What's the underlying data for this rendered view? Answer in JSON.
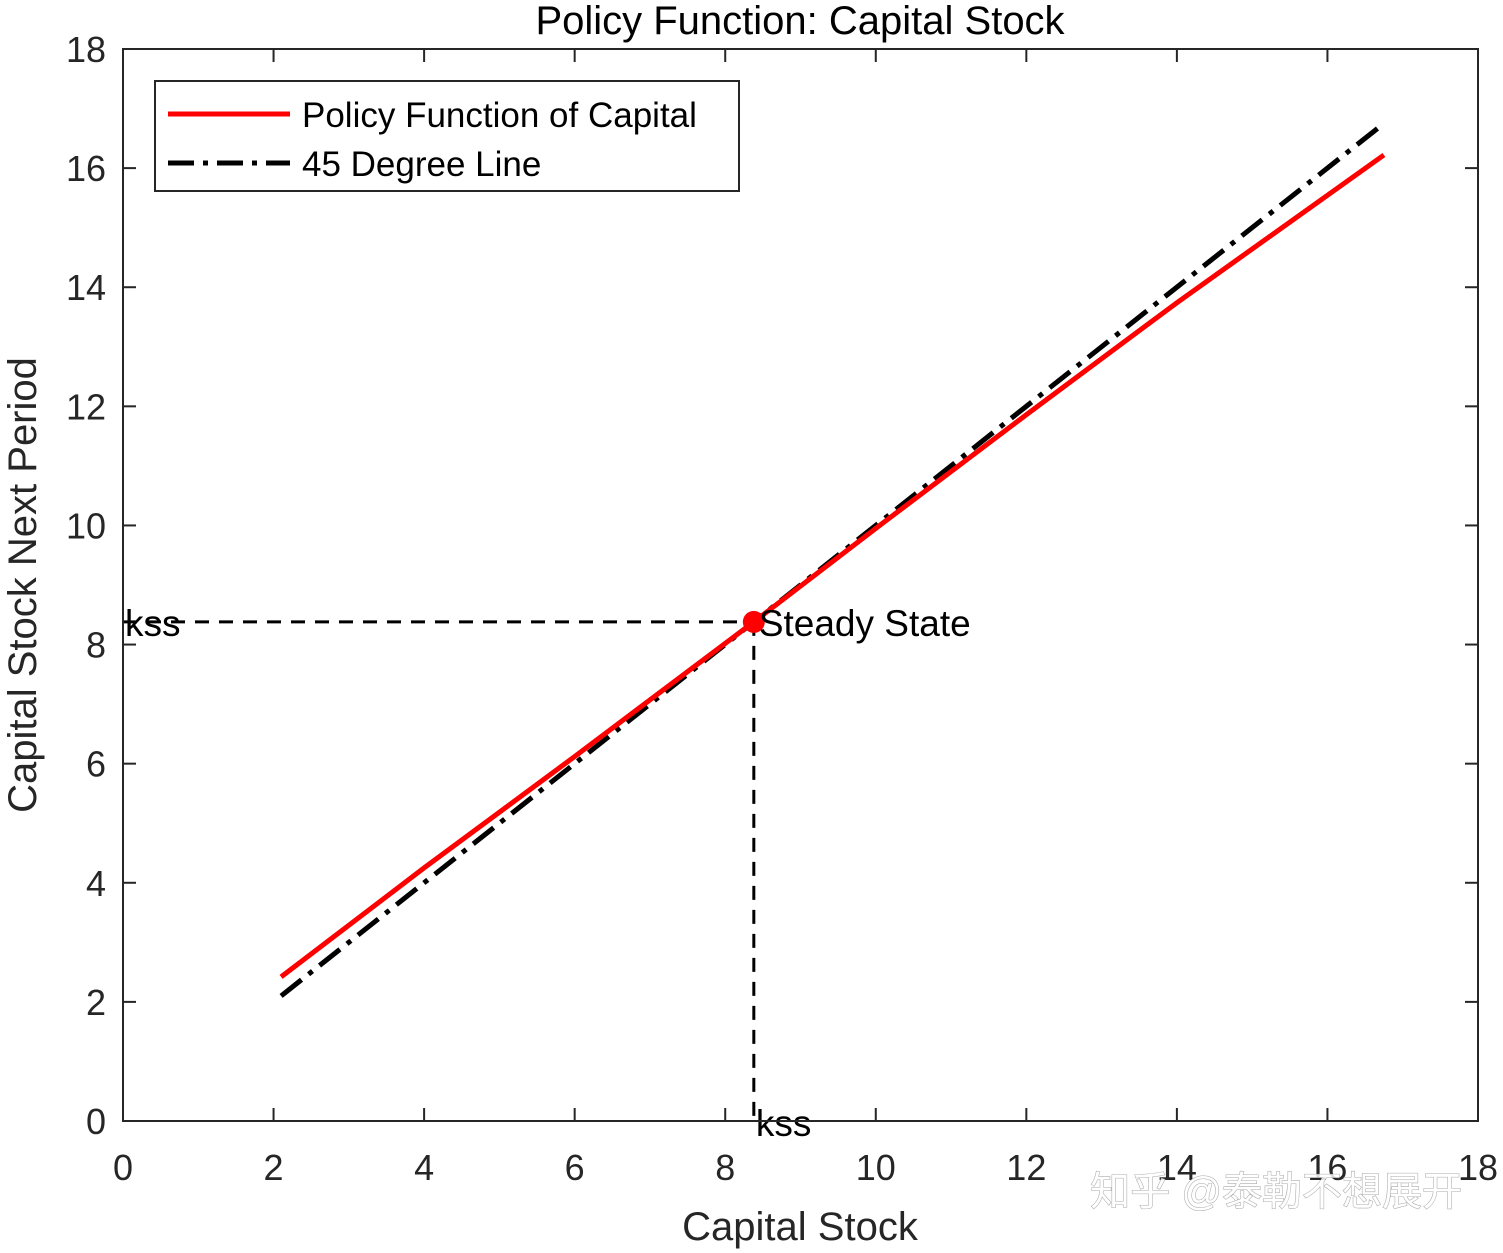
{
  "chart_data": {
    "type": "line",
    "title": "Policy Function: Capital Stock",
    "xlabel": "Capital Stock",
    "ylabel": "Capital Stock Next Period",
    "xlim": [
      0,
      18
    ],
    "ylim": [
      0,
      18
    ],
    "xticks": [
      0,
      2,
      4,
      6,
      8,
      10,
      12,
      14,
      16,
      18
    ],
    "yticks": [
      0,
      2,
      4,
      6,
      8,
      10,
      12,
      14,
      16,
      18
    ],
    "grid": false,
    "box": true,
    "legend_position": "top-left",
    "series": [
      {
        "name": "Policy Function of Capital",
        "color": "#ff0000",
        "style": "solid",
        "x": [
          2.1,
          4.0,
          6.0,
          8.38,
          10.0,
          12.0,
          14.0,
          16.75
        ],
        "y": [
          2.42,
          4.25,
          6.12,
          8.38,
          9.95,
          11.86,
          13.74,
          16.22
        ]
      },
      {
        "name": "45 Degree Line",
        "color": "#000000",
        "style": "dash-dot",
        "x": [
          2.1,
          16.75
        ],
        "y": [
          2.1,
          16.75
        ]
      }
    ],
    "steady_state": {
      "x": 8.38,
      "y": 8.38,
      "label": "Steady State",
      "marker_color": "#ff0000"
    },
    "reference_lines": {
      "horizontal_label": "kss",
      "vertical_label": "kss"
    }
  },
  "watermark": "知乎 @泰勒不想展开"
}
